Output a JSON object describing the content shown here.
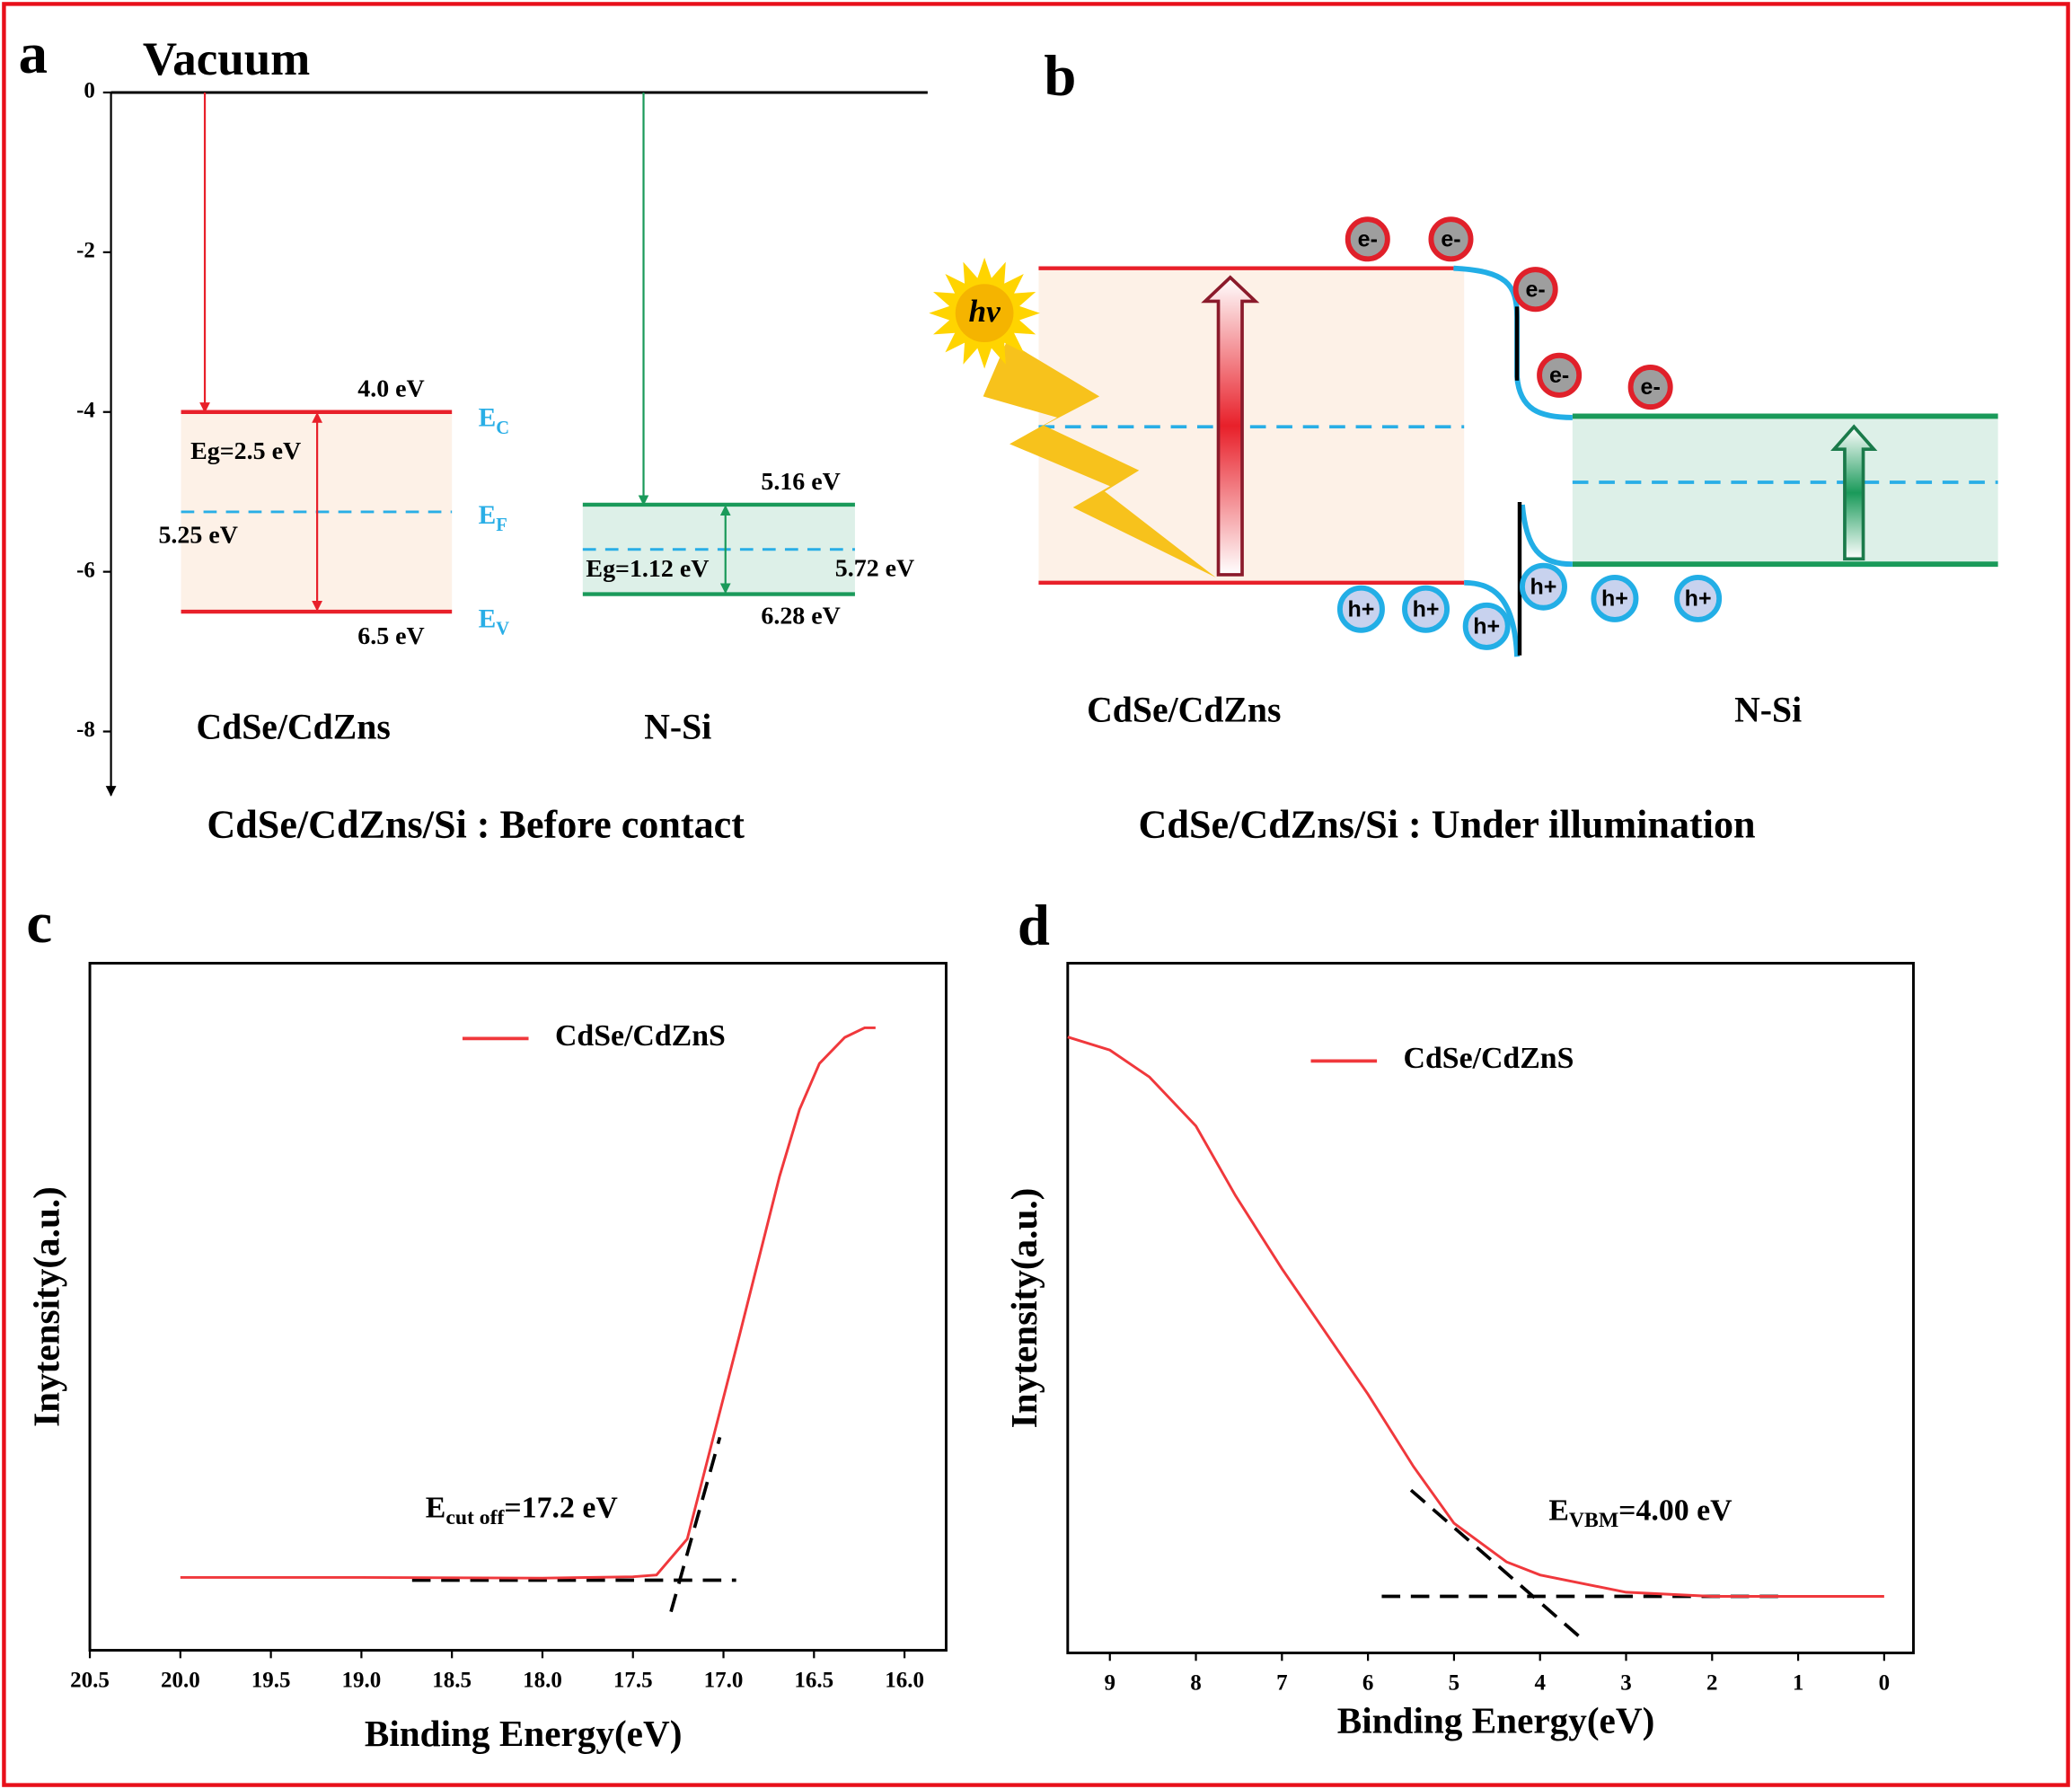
{
  "chart_data": [
    {
      "type": "band-levels",
      "label": "a",
      "title": "Vacuum",
      "caption": "CdSe/CdZns/Si : Before contact",
      "ylim": [
        -8.8,
        0
      ],
      "yticks": [
        0,
        -2,
        -4,
        -6,
        -8
      ],
      "fermi_color": "#29aee6",
      "level_names": [
        {
          "symbol": "E",
          "sub": "C"
        },
        {
          "symbol": "E",
          "sub": "F"
        },
        {
          "symbol": "E",
          "sub": "V"
        }
      ],
      "materials": [
        {
          "name": "CdSe/CdZns",
          "color": "#e8202a",
          "fill": "#fdf1e7",
          "levels": [
            -4.0,
            -5.25,
            -6.5
          ],
          "value_labels": [
            "4.0 eV",
            "5.25 eV",
            "6.5 eV"
          ],
          "gap_label": "Eg=2.5 eV"
        },
        {
          "name": "N-Si",
          "color": "#1a9a5a",
          "fill": "#ddf0e8",
          "levels": [
            -5.16,
            -5.72,
            -6.28
          ],
          "value_labels": [
            "5.16 eV",
            "5.72 eV",
            "6.28 eV"
          ],
          "gap_label": "Eg=1.12 eV"
        }
      ]
    },
    {
      "type": "line",
      "label": "c",
      "xlabel": "Binding Energy(eV)",
      "ylabel": "Inytensity(a.u.)",
      "xlim": [
        20.5,
        15.77
      ],
      "ylim": [
        0,
        100
      ],
      "xticks": [
        20.5,
        {
          "value": 20,
          "label": "20.0"
        },
        19.5,
        {
          "value": 19,
          "label": "19.0"
        },
        18.5,
        {
          "value": 18,
          "label": "18.0"
        },
        17.5,
        {
          "value": 17,
          "label": "17.0"
        },
        16.5,
        {
          "value": 16,
          "label": "16.0"
        }
      ],
      "series": [
        {
          "name": "CdSe/CdZnS",
          "color": "#f0383c",
          "x": [
            20.0,
            19.0,
            18.0,
            17.5,
            17.37,
            17.2,
            17.06,
            16.91,
            16.8,
            16.69,
            16.58,
            16.47,
            16.33,
            16.22,
            16.16
          ],
          "values": [
            10.6,
            10.6,
            10.5,
            10.7,
            10.96,
            16.2,
            30.6,
            46.0,
            57.5,
            69.0,
            78.7,
            85.4,
            89.2,
            90.6,
            90.6
          ]
        }
      ],
      "guides": [
        {
          "x": [
            18.72,
            16.93
          ],
          "y": [
            10.2,
            10.2
          ]
        },
        {
          "x": [
            17.29,
            17.02
          ],
          "y": [
            5.6,
            31.0
          ]
        }
      ],
      "annotation": {
        "symbol": "E",
        "sub": "cut off",
        "text": "=17.2 eV"
      }
    },
    {
      "type": "line",
      "label": "d",
      "xlabel": "Binding Energy(eV)",
      "ylabel": "Inytensity(a.u.)",
      "xlim": [
        9.49,
        -0.34
      ],
      "ylim": [
        0,
        100
      ],
      "xticks": [
        9,
        8,
        7,
        6,
        5,
        4,
        3,
        2,
        1,
        0
      ],
      "series": [
        {
          "name": "CdSe/CdZnS",
          "color": "#f0383c",
          "x": [
            9.49,
            9.0,
            8.54,
            8.0,
            7.54,
            7.0,
            6.0,
            5.47,
            5.0,
            4.39,
            4.0,
            3.0,
            2.0,
            0
          ],
          "values": [
            89.3,
            87.4,
            83.5,
            76.4,
            66.3,
            55.7,
            37.5,
            27.0,
            18.8,
            13.2,
            11.3,
            8.8,
            8.2,
            8.2
          ]
        }
      ],
      "guides": [
        {
          "x": [
            5.84,
            1.12
          ],
          "y": [
            8.2,
            8.2
          ]
        },
        {
          "x": [
            5.5,
            3.5
          ],
          "y": [
            23.6,
            1.9
          ]
        }
      ],
      "annotation": {
        "symbol": "E",
        "sub": "VBM",
        "text": "=4.00 eV"
      }
    }
  ],
  "figure_b": {
    "label": "b",
    "photon": "hv",
    "electrons": [
      "e-",
      "e-",
      "e-",
      "e-",
      "e-"
    ],
    "holes": [
      "h+",
      "h+",
      "h+",
      "h+",
      "h+",
      "h+"
    ],
    "materials": [
      "CdSe/CdZns",
      "N-Si"
    ],
    "caption": "CdSe/CdZns/Si : Under illumination"
  }
}
